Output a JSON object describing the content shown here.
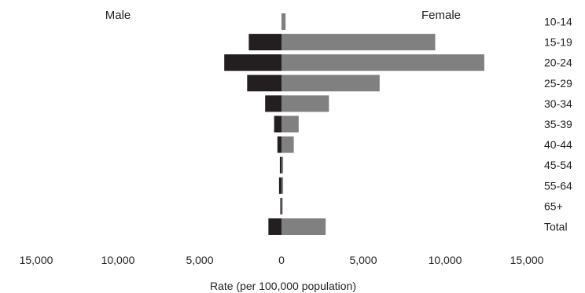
{
  "chart_data": {
    "type": "bar",
    "orientation": "horizontal-diverging",
    "title": "",
    "xlabel": "Rate (per 100,000 population)",
    "ylabel": "",
    "left_side_label": "Male",
    "right_side_label": "Female",
    "xlim": [
      -15000,
      15000
    ],
    "x_ticks": [
      -15000,
      -10000,
      -5000,
      0,
      5000,
      10000,
      15000
    ],
    "x_tick_labels": [
      "15,000",
      "10,000",
      "5,000",
      "0",
      "5,000",
      "10,000",
      "15,000"
    ],
    "categories": [
      "10-14",
      "15-19",
      "20-24",
      "25-29",
      "30-34",
      "35-39",
      "40-44",
      "45-54",
      "55-64",
      "65+",
      "Total"
    ],
    "series": [
      {
        "name": "Male",
        "values": [
          0,
          2000,
          3500,
          2100,
          1000,
          450,
          250,
          100,
          150,
          20,
          800
        ],
        "color": "#231f20"
      },
      {
        "name": "Female",
        "values": [
          250,
          9400,
          12400,
          6000,
          2900,
          1050,
          750,
          100,
          100,
          30,
          2700
        ],
        "color": "#808080"
      }
    ],
    "grid": false,
    "legend": "none"
  }
}
